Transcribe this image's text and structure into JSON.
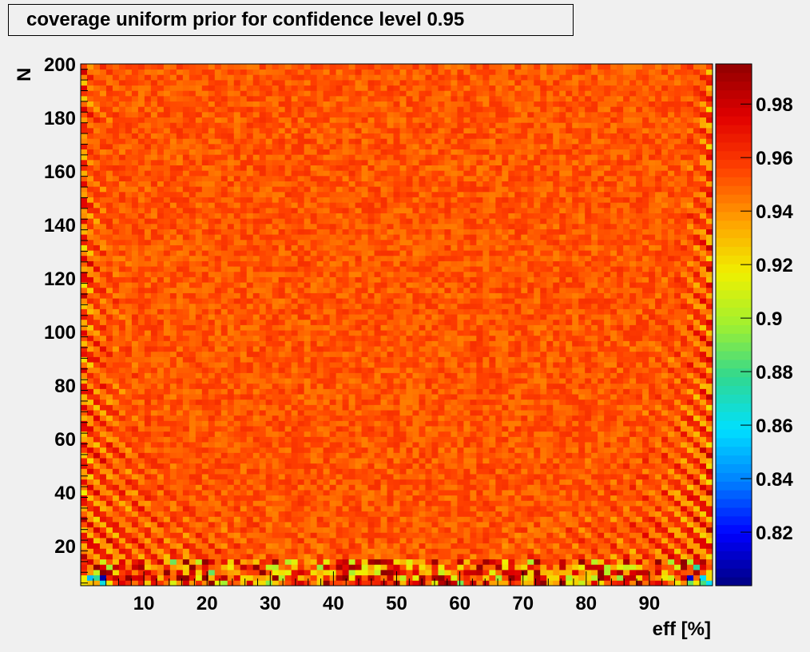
{
  "chart_data": {
    "type": "heatmap",
    "title": "coverage uniform prior for confidence level 0.95",
    "xlabel": "eff [%]",
    "ylabel": "N",
    "xlim": [
      0,
      100
    ],
    "ylim": [
      5,
      200
    ],
    "x_ticks": [
      "10",
      "20",
      "30",
      "40",
      "50",
      "60",
      "70",
      "80",
      "90"
    ],
    "y_ticks": [
      "20",
      "40",
      "60",
      "80",
      "100",
      "120",
      "140",
      "160",
      "180",
      "200"
    ],
    "color_scale": {
      "min": 0.8,
      "max": 0.995,
      "ticks": [
        "0.82",
        "0.84",
        "0.86",
        "0.88",
        "0.9",
        "0.92",
        "0.94",
        "0.96",
        "0.98"
      ]
    },
    "summary": {
      "typical_coverage": 0.95,
      "edge_behavior": "coverage oscillates near the eff edges (eff near 1% and 99%) with values from about 0.80 at small N up to about 0.99",
      "low_N_behavior": "strong oscillation below N = 15 with values between 0.82 and 0.99"
    },
    "colors": {
      "background": "#f0f0f0",
      "palette": [
        "#000080",
        "#0000ff",
        "#0080ff",
        "#00e0ff",
        "#30d890",
        "#a0f030",
        "#f0f000",
        "#ffa000",
        "#ff4000",
        "#e00000",
        "#900000"
      ]
    }
  }
}
